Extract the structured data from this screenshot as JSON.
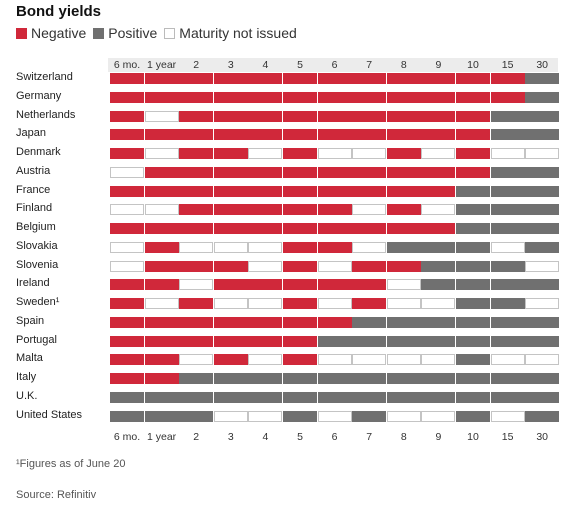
{
  "title": "Bond yields",
  "legend": {
    "negative": "Negative",
    "positive": "Positive",
    "not_issued": "Maturity not issued"
  },
  "colors": {
    "negative": "#d0283a",
    "positive": "#707070",
    "not_issued": "#ffffff"
  },
  "footnote": "¹Figures as of June 20",
  "source": "Source: Refinitiv",
  "chart_data": {
    "type": "heatmap",
    "title": "Bond yields",
    "categories": [
      "N",
      "P",
      "X"
    ],
    "category_labels": {
      "N": "Negative",
      "P": "Positive",
      "X": "Maturity not issued"
    },
    "columns": [
      "6 mo.",
      "1 year",
      "2",
      "3",
      "4",
      "5",
      "6",
      "7",
      "8",
      "9",
      "10",
      "15",
      "30"
    ],
    "rows": [
      {
        "name": "Switzerland",
        "values": [
          "N",
          "N",
          "N",
          "N",
          "N",
          "N",
          "N",
          "N",
          "N",
          "N",
          "N",
          "N",
          "P"
        ]
      },
      {
        "name": "Germany",
        "values": [
          "N",
          "N",
          "N",
          "N",
          "N",
          "N",
          "N",
          "N",
          "N",
          "N",
          "N",
          "N",
          "P"
        ]
      },
      {
        "name": "Netherlands",
        "values": [
          "N",
          "X",
          "N",
          "N",
          "N",
          "N",
          "N",
          "N",
          "N",
          "N",
          "N",
          "P",
          "P"
        ]
      },
      {
        "name": "Japan",
        "values": [
          "N",
          "N",
          "N",
          "N",
          "N",
          "N",
          "N",
          "N",
          "N",
          "N",
          "N",
          "P",
          "P"
        ]
      },
      {
        "name": "Denmark",
        "values": [
          "N",
          "X",
          "N",
          "N",
          "X",
          "N",
          "X",
          "X",
          "N",
          "X",
          "N",
          "X",
          "X"
        ]
      },
      {
        "name": "Austria",
        "values": [
          "X",
          "N",
          "N",
          "N",
          "N",
          "N",
          "N",
          "N",
          "N",
          "N",
          "N",
          "P",
          "P"
        ]
      },
      {
        "name": "France",
        "values": [
          "N",
          "N",
          "N",
          "N",
          "N",
          "N",
          "N",
          "N",
          "N",
          "N",
          "P",
          "P",
          "P"
        ]
      },
      {
        "name": "Finland",
        "values": [
          "X",
          "X",
          "N",
          "N",
          "N",
          "N",
          "N",
          "X",
          "N",
          "X",
          "P",
          "P",
          "P"
        ]
      },
      {
        "name": "Belgium",
        "values": [
          "N",
          "N",
          "N",
          "N",
          "N",
          "N",
          "N",
          "N",
          "N",
          "N",
          "P",
          "P",
          "P"
        ]
      },
      {
        "name": "Slovakia",
        "values": [
          "X",
          "N",
          "X",
          "X",
          "X",
          "N",
          "N",
          "X",
          "P",
          "P",
          "P",
          "X",
          "P"
        ]
      },
      {
        "name": "Slovenia",
        "values": [
          "X",
          "N",
          "N",
          "N",
          "X",
          "N",
          "X",
          "N",
          "N",
          "P",
          "P",
          "P",
          "X"
        ]
      },
      {
        "name": "Ireland",
        "values": [
          "N",
          "N",
          "X",
          "N",
          "N",
          "N",
          "N",
          "N",
          "X",
          "P",
          "P",
          "P",
          "P"
        ]
      },
      {
        "name": "Sweden¹",
        "values": [
          "N",
          "X",
          "N",
          "X",
          "X",
          "N",
          "X",
          "N",
          "X",
          "X",
          "P",
          "P",
          "X"
        ]
      },
      {
        "name": "Spain",
        "values": [
          "N",
          "N",
          "N",
          "N",
          "N",
          "N",
          "N",
          "P",
          "P",
          "P",
          "P",
          "P",
          "P"
        ]
      },
      {
        "name": "Portugal",
        "values": [
          "N",
          "N",
          "N",
          "N",
          "N",
          "N",
          "P",
          "P",
          "P",
          "P",
          "P",
          "P",
          "P"
        ]
      },
      {
        "name": "Malta",
        "values": [
          "N",
          "N",
          "X",
          "N",
          "X",
          "N",
          "X",
          "X",
          "X",
          "X",
          "P",
          "X",
          "X"
        ]
      },
      {
        "name": "Italy",
        "values": [
          "N",
          "N",
          "P",
          "P",
          "P",
          "P",
          "P",
          "P",
          "P",
          "P",
          "P",
          "P",
          "P"
        ]
      },
      {
        "name": "U.K.",
        "values": [
          "P",
          "P",
          "P",
          "P",
          "P",
          "P",
          "P",
          "P",
          "P",
          "P",
          "P",
          "P",
          "P"
        ]
      },
      {
        "name": "United States",
        "values": [
          "P",
          "P",
          "P",
          "X",
          "X",
          "P",
          "X",
          "P",
          "X",
          "X",
          "P",
          "X",
          "P"
        ]
      }
    ]
  }
}
